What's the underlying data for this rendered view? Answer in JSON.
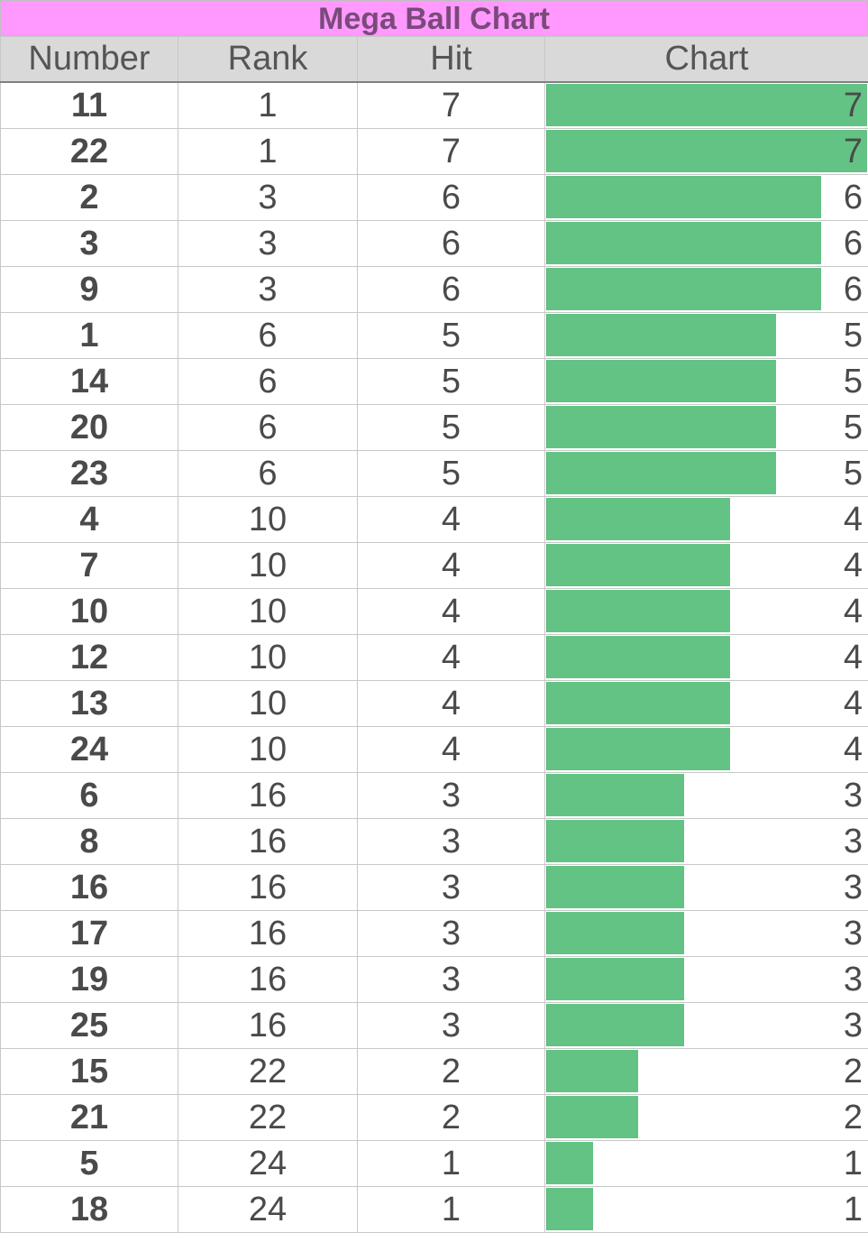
{
  "title": "Mega Ball Chart",
  "headers": {
    "number": "Number",
    "rank": "Rank",
    "hit": "Hit",
    "chart": "Chart"
  },
  "colors": {
    "title_bg": "#ff99ff",
    "header_bg": "#d9d9d9",
    "number_text": "#ff2d95",
    "bar_fill": "#63c384"
  },
  "rows": [
    {
      "number": "11",
      "rank": "1",
      "hit": "7"
    },
    {
      "number": "22",
      "rank": "1",
      "hit": "7"
    },
    {
      "number": "2",
      "rank": "3",
      "hit": "6"
    },
    {
      "number": "3",
      "rank": "3",
      "hit": "6"
    },
    {
      "number": "9",
      "rank": "3",
      "hit": "6"
    },
    {
      "number": "1",
      "rank": "6",
      "hit": "5"
    },
    {
      "number": "14",
      "rank": "6",
      "hit": "5"
    },
    {
      "number": "20",
      "rank": "6",
      "hit": "5"
    },
    {
      "number": "23",
      "rank": "6",
      "hit": "5"
    },
    {
      "number": "4",
      "rank": "10",
      "hit": "4"
    },
    {
      "number": "7",
      "rank": "10",
      "hit": "4"
    },
    {
      "number": "10",
      "rank": "10",
      "hit": "4"
    },
    {
      "number": "12",
      "rank": "10",
      "hit": "4"
    },
    {
      "number": "13",
      "rank": "10",
      "hit": "4"
    },
    {
      "number": "24",
      "rank": "10",
      "hit": "4"
    },
    {
      "number": "6",
      "rank": "16",
      "hit": "3"
    },
    {
      "number": "8",
      "rank": "16",
      "hit": "3"
    },
    {
      "number": "16",
      "rank": "16",
      "hit": "3"
    },
    {
      "number": "17",
      "rank": "16",
      "hit": "3"
    },
    {
      "number": "19",
      "rank": "16",
      "hit": "3"
    },
    {
      "number": "25",
      "rank": "16",
      "hit": "3"
    },
    {
      "number": "15",
      "rank": "22",
      "hit": "2"
    },
    {
      "number": "21",
      "rank": "22",
      "hit": "2"
    },
    {
      "number": "5",
      "rank": "24",
      "hit": "1"
    },
    {
      "number": "18",
      "rank": "24",
      "hit": "1"
    }
  ],
  "chart_data": {
    "type": "bar",
    "title": "Mega Ball Chart",
    "xlabel": "",
    "ylabel": "",
    "orientation": "horizontal",
    "xlim": [
      0,
      7
    ],
    "grid": false,
    "categories": [
      "11",
      "22",
      "2",
      "3",
      "9",
      "1",
      "14",
      "20",
      "23",
      "4",
      "7",
      "10",
      "12",
      "13",
      "24",
      "6",
      "8",
      "16",
      "17",
      "19",
      "25",
      "15",
      "21",
      "5",
      "18"
    ],
    "values": [
      7,
      7,
      6,
      6,
      6,
      5,
      5,
      5,
      5,
      4,
      4,
      4,
      4,
      4,
      4,
      3,
      3,
      3,
      3,
      3,
      3,
      2,
      2,
      1,
      1
    ]
  }
}
